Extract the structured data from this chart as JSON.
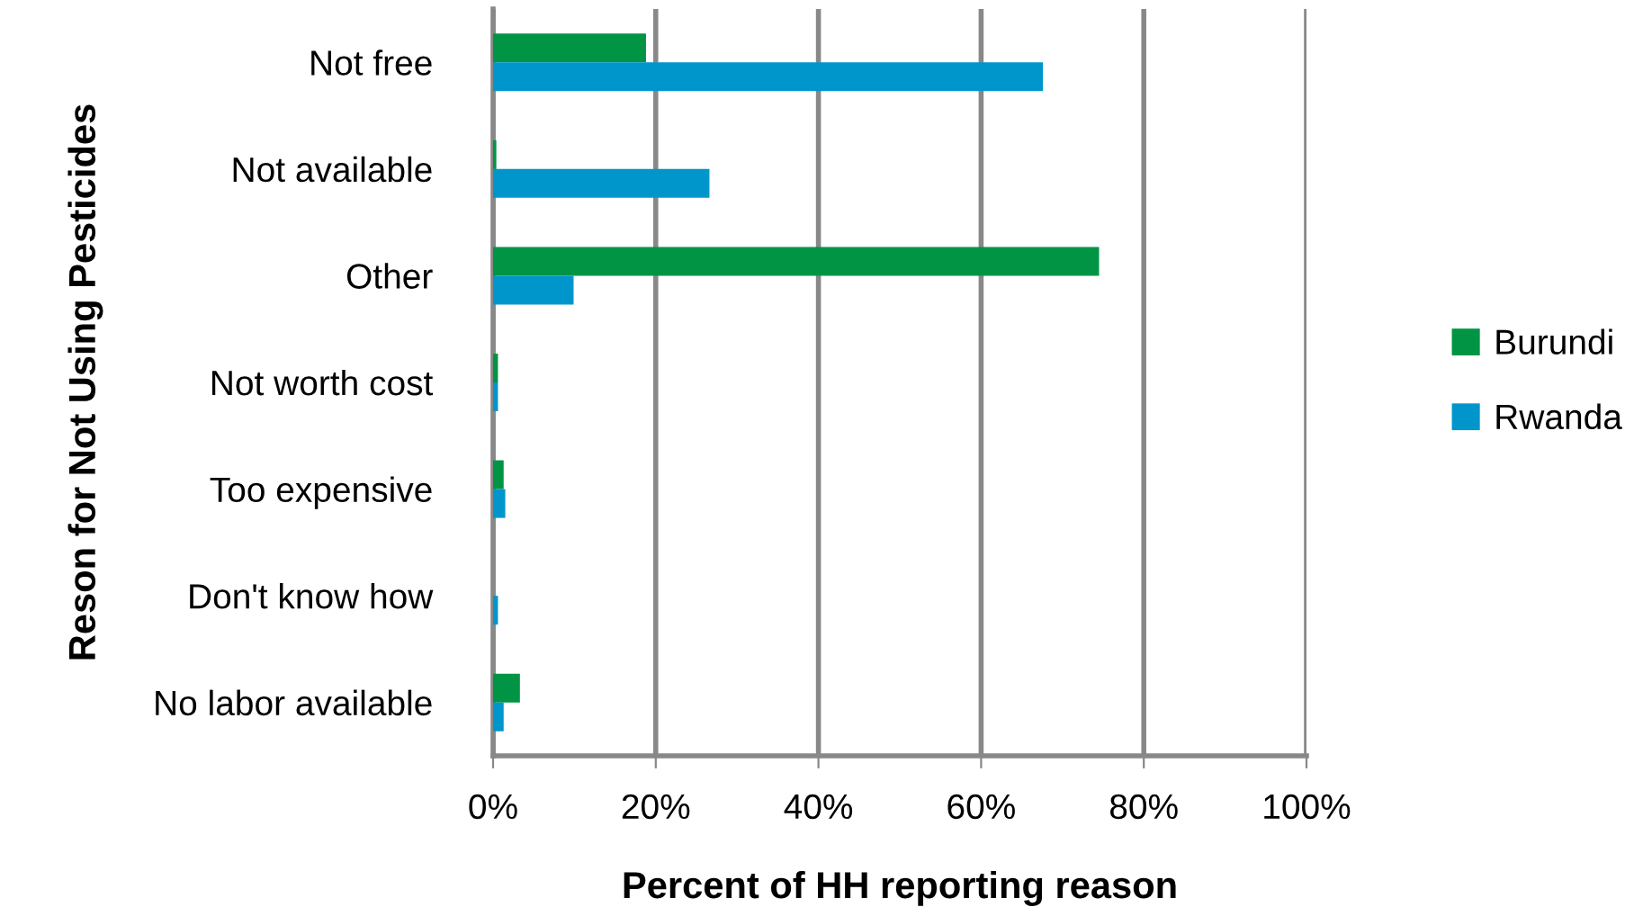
{
  "chart_data": {
    "type": "bar",
    "orientation": "horizontal",
    "xlabel": "Percent of HH reporting reason",
    "ylabel": "Reson for Not Using Pesticides",
    "categories": [
      "Not free",
      "Not available",
      "Other",
      "Not worth cost",
      "Too expensive",
      "Don't know how",
      "No labor available"
    ],
    "series": [
      {
        "name": "Burundi",
        "color": "#009444",
        "values": [
          18.8,
          0.4,
          74.5,
          0.6,
          1.3,
          0,
          3.3
        ]
      },
      {
        "name": "Rwanda",
        "color": "#0096cc",
        "values": [
          67.6,
          26.6,
          9.9,
          0.6,
          1.5,
          0.6,
          1.3
        ]
      }
    ],
    "xlim": [
      0,
      100
    ],
    "xticks": [
      {
        "value": 0,
        "label": "0%"
      },
      {
        "value": 20,
        "label": "20%"
      },
      {
        "value": 40,
        "label": "40%"
      },
      {
        "value": 60,
        "label": "60%"
      },
      {
        "value": 80,
        "label": "80%"
      },
      {
        "value": 100,
        "label": "100%"
      }
    ],
    "grid": "x",
    "legend": "right"
  }
}
